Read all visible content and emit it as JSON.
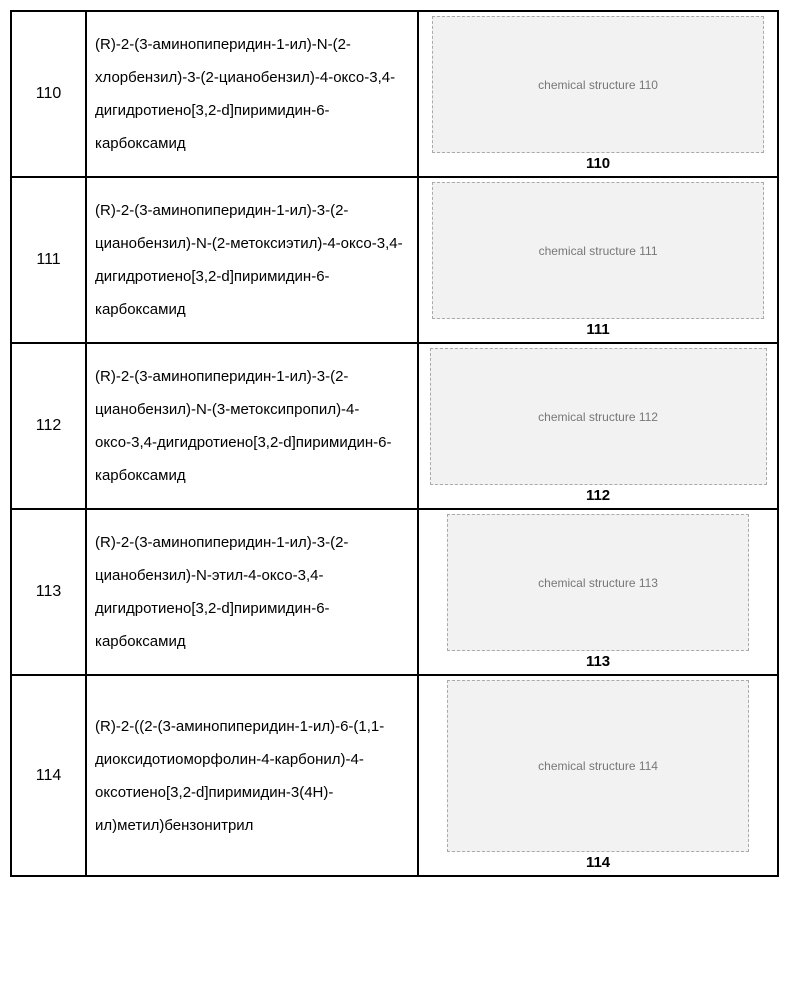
{
  "rows": [
    {
      "num": "110",
      "name": "(R)-2-(3-аминопиперидин-1-ил)-N-(2-хлорбензил)-3-(2-цианобензил)-4-оксо-3,4-дигидротиено[3,2-d]пиримидин-6-карбоксамид",
      "struct_label": "110",
      "struct_desc": "chemical structure 110",
      "struct_w": 330,
      "struct_h": 135
    },
    {
      "num": "111",
      "name": "(R)-2-(3-аминопиперидин-1-ил)-3-(2-цианобензил)-N-(2-метоксиэтил)-4-оксо-3,4-дигидротиено[3,2-d]пиримидин-6-карбоксамид",
      "struct_label": "111",
      "struct_desc": "chemical structure 111",
      "struct_w": 330,
      "struct_h": 135
    },
    {
      "num": "112",
      "name": "(R)-2-(3-аминопиперидин-1-ил)-3-(2-цианобензил)-N-(3-метоксипропил)-4-оксо-3,4-дигидротиено[3,2-d]пиримидин-6-карбоксамид",
      "struct_label": "112",
      "struct_desc": "chemical structure 112",
      "struct_w": 335,
      "struct_h": 135
    },
    {
      "num": "113",
      "name": "(R)-2-(3-аминопиперидин-1-ил)-3-(2-цианобензил)-N-этил-4-оксо-3,4-дигидротиено[3,2-d]пиримидин-6-карбоксамид",
      "struct_label": "113",
      "struct_desc": "chemical structure 113",
      "struct_w": 300,
      "struct_h": 135
    },
    {
      "num": "114",
      "name": "(R)-2-((2-(3-аминопиперидин-1-ил)-6-(1,1-диоксидотиоморфолин-4-карбонил)-4-оксотиено[3,2-d]пиримидин-3(4H)-ил)метил)бензонитрил",
      "struct_label": "114",
      "struct_desc": "chemical structure 114",
      "struct_w": 300,
      "struct_h": 170
    }
  ]
}
